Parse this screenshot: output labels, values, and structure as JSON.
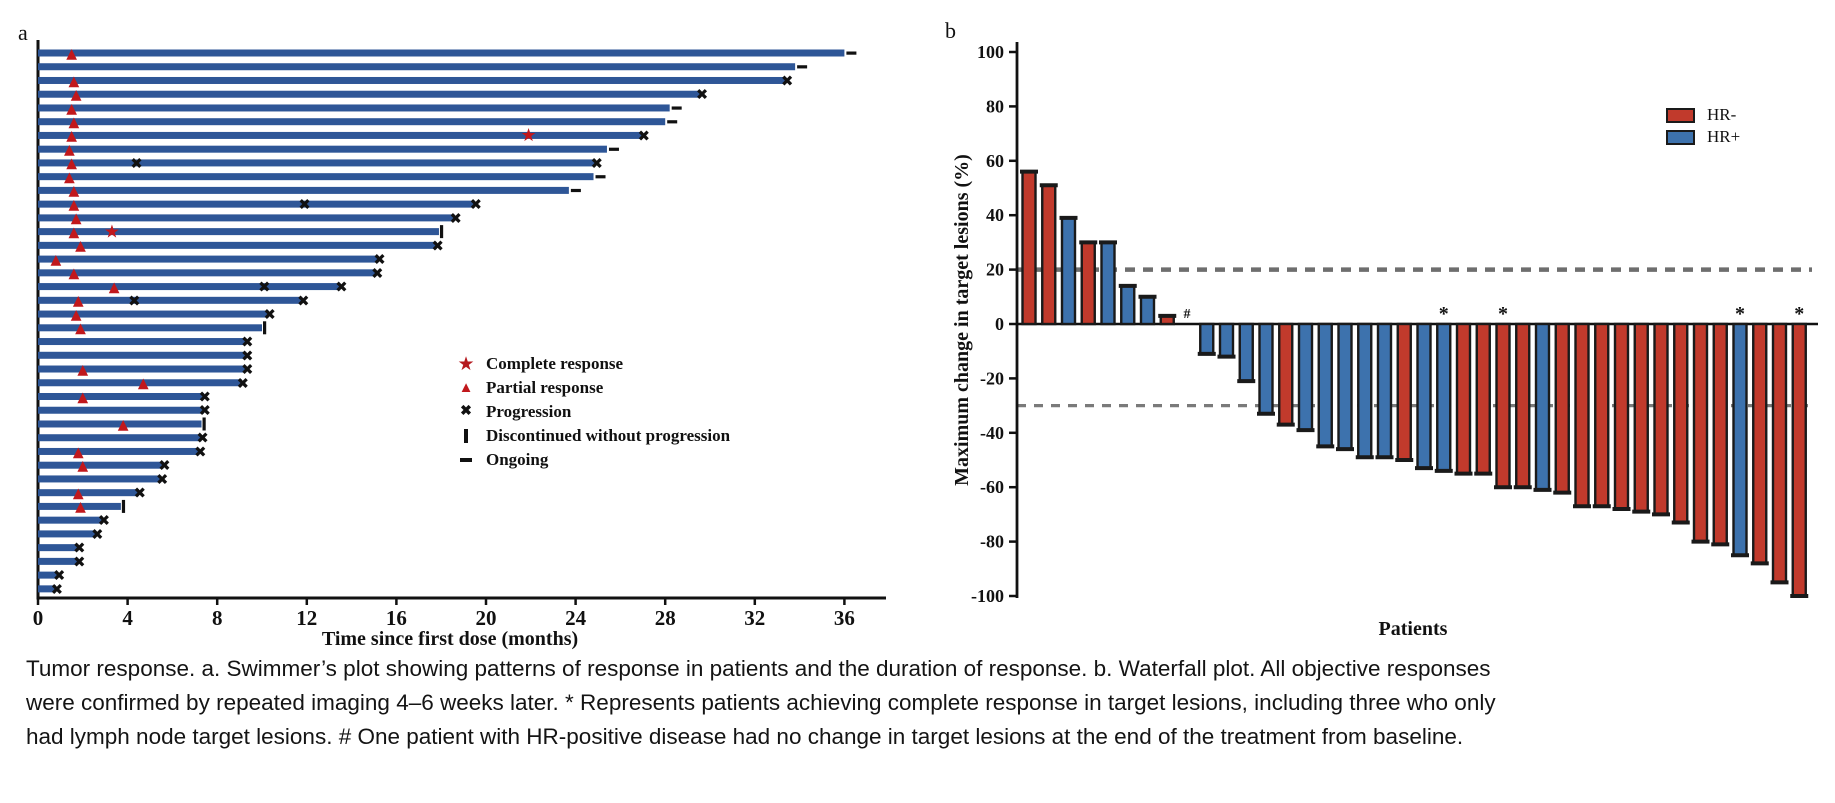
{
  "caption": "Tumor response. a. Swimmer’s plot showing patterns of response in patients and the duration of response. b. Waterfall plot. All objective responses were confirmed by repeated imaging 4–6 weeks later. * Represents patients achieving complete response in target lesions, including three who only had lymph node target lesions. # One patient with HR-positive disease had no change in target lesions at the end of the treatment from baseline.",
  "chart_data": [
    {
      "panel_label": "a",
      "type": "bar",
      "subtype": "swimmer",
      "xlabel": "Time since first dose (months)",
      "xlim": [
        0,
        38
      ],
      "x_ticks": [
        0,
        4,
        8,
        12,
        16,
        20,
        24,
        28,
        32,
        36
      ],
      "bar_color": "#2e5697",
      "marker_red": "#c1181c",
      "legend": [
        {
          "marker": "star",
          "label": "Complete response"
        },
        {
          "marker": "triangle",
          "label": "Partial response"
        },
        {
          "marker": "cross",
          "label": "Progression"
        },
        {
          "marker": "bar",
          "label": "Discontinued without progression"
        },
        {
          "marker": "dash",
          "label": "Ongoing"
        }
      ],
      "patients": [
        {
          "duration": 36.0,
          "end": "ongoing",
          "triangle": 1.5
        },
        {
          "duration": 33.8,
          "end": "ongoing"
        },
        {
          "duration": 33.4,
          "end": "progression",
          "triangle": 1.6
        },
        {
          "duration": 29.6,
          "end": "progression",
          "triangle": 1.7
        },
        {
          "duration": 28.2,
          "end": "ongoing",
          "triangle": 1.5
        },
        {
          "duration": 28.0,
          "end": "ongoing",
          "triangle": 1.6
        },
        {
          "duration": 27.0,
          "end": "progression",
          "triangle": 1.5,
          "star": 21.9
        },
        {
          "duration": 25.4,
          "end": "ongoing",
          "triangle": 1.4
        },
        {
          "duration": 24.9,
          "end": "progression",
          "triangle": 1.5,
          "crosses": [
            4.4
          ]
        },
        {
          "duration": 24.8,
          "end": "ongoing",
          "triangle": 1.4
        },
        {
          "duration": 23.7,
          "end": "ongoing",
          "triangle": 1.6
        },
        {
          "duration": 19.5,
          "end": "progression",
          "triangle": 1.6,
          "crosses": [
            11.9
          ]
        },
        {
          "duration": 18.6,
          "end": "progression",
          "triangle": 1.7
        },
        {
          "duration": 17.9,
          "end": "discontinued",
          "triangle": 1.6,
          "star": 3.3
        },
        {
          "duration": 17.8,
          "end": "progression",
          "triangle": 1.9
        },
        {
          "duration": 15.2,
          "end": "progression",
          "triangle": 0.8
        },
        {
          "duration": 15.1,
          "end": "progression",
          "triangle": 1.6
        },
        {
          "duration": 13.5,
          "end": "progression",
          "triangle": 3.4,
          "crosses": [
            10.1
          ]
        },
        {
          "duration": 11.8,
          "end": "progression",
          "triangle": 1.8,
          "crosses": [
            4.3
          ]
        },
        {
          "duration": 10.3,
          "end": "progression",
          "triangle": 1.7
        },
        {
          "duration": 10.0,
          "end": "discontinued",
          "triangle": 1.9
        },
        {
          "duration": 9.3,
          "end": "progression"
        },
        {
          "duration": 9.3,
          "end": "progression"
        },
        {
          "duration": 9.3,
          "end": "progression",
          "triangle": 2.0
        },
        {
          "duration": 9.1,
          "end": "progression",
          "triangle": 4.7
        },
        {
          "duration": 7.4,
          "end": "progression",
          "triangle": 2.0
        },
        {
          "duration": 7.4,
          "end": "progression"
        },
        {
          "duration": 7.3,
          "end": "discontinued",
          "triangle": 3.8
        },
        {
          "duration": 7.3,
          "end": "progression"
        },
        {
          "duration": 7.2,
          "end": "progression",
          "triangle": 1.8
        },
        {
          "duration": 5.6,
          "end": "progression",
          "triangle": 2.0
        },
        {
          "duration": 5.5,
          "end": "progression"
        },
        {
          "duration": 4.5,
          "end": "progression",
          "triangle": 1.8
        },
        {
          "duration": 3.7,
          "end": "discontinued",
          "triangle": 1.9
        },
        {
          "duration": 2.9,
          "end": "progression"
        },
        {
          "duration": 2.6,
          "end": "progression"
        },
        {
          "duration": 1.8,
          "end": "progression"
        },
        {
          "duration": 1.8,
          "end": "progression"
        },
        {
          "duration": 0.9,
          "end": "progression"
        },
        {
          "duration": 0.8,
          "end": "progression"
        }
      ]
    },
    {
      "panel_label": "b",
      "type": "bar",
      "subtype": "waterfall",
      "xlabel": "Patients",
      "ylabel": "Maximum change in target lesions (%)",
      "ylim": [
        -100,
        100
      ],
      "y_ticks": [
        100,
        80,
        60,
        40,
        20,
        0,
        -20,
        -40,
        -60,
        -80,
        -100
      ],
      "reference_lines": [
        20,
        -30
      ],
      "legend": [
        {
          "label": "HR-",
          "color": "#c13a2c"
        },
        {
          "label": "HR+",
          "color": "#3d72ad"
        }
      ],
      "colors": {
        "HR-": "#c13a2c",
        "HR+": "#3d72ad"
      },
      "patients": [
        {
          "value": 56,
          "group": "HR-"
        },
        {
          "value": 51,
          "group": "HR-"
        },
        {
          "value": 39,
          "group": "HR+"
        },
        {
          "value": 30,
          "group": "HR-"
        },
        {
          "value": 30,
          "group": "HR+"
        },
        {
          "value": 14,
          "group": "HR+"
        },
        {
          "value": 10,
          "group": "HR+"
        },
        {
          "value": 3,
          "group": "HR-"
        },
        {
          "value": 0,
          "group": "HR+",
          "annotation": "#"
        },
        {
          "value": -11,
          "group": "HR+"
        },
        {
          "value": -12,
          "group": "HR+"
        },
        {
          "value": -21,
          "group": "HR+"
        },
        {
          "value": -33,
          "group": "HR+"
        },
        {
          "value": -37,
          "group": "HR-"
        },
        {
          "value": -39,
          "group": "HR+"
        },
        {
          "value": -45,
          "group": "HR+"
        },
        {
          "value": -46,
          "group": "HR+"
        },
        {
          "value": -49,
          "group": "HR+"
        },
        {
          "value": -49,
          "group": "HR+"
        },
        {
          "value": -50,
          "group": "HR-"
        },
        {
          "value": -53,
          "group": "HR+"
        },
        {
          "value": -54,
          "group": "HR+",
          "annotation": "*"
        },
        {
          "value": -55,
          "group": "HR-"
        },
        {
          "value": -55,
          "group": "HR-"
        },
        {
          "value": -60,
          "group": "HR-",
          "annotation": "*"
        },
        {
          "value": -60,
          "group": "HR-"
        },
        {
          "value": -61,
          "group": "HR+"
        },
        {
          "value": -62,
          "group": "HR-"
        },
        {
          "value": -67,
          "group": "HR-"
        },
        {
          "value": -67,
          "group": "HR-"
        },
        {
          "value": -68,
          "group": "HR-"
        },
        {
          "value": -69,
          "group": "HR-"
        },
        {
          "value": -70,
          "group": "HR-"
        },
        {
          "value": -73,
          "group": "HR-"
        },
        {
          "value": -80,
          "group": "HR-"
        },
        {
          "value": -81,
          "group": "HR-"
        },
        {
          "value": -85,
          "group": "HR+",
          "annotation": "*"
        },
        {
          "value": -88,
          "group": "HR-"
        },
        {
          "value": -95,
          "group": "HR-"
        },
        {
          "value": -100,
          "group": "HR-",
          "annotation": "*"
        }
      ]
    }
  ]
}
